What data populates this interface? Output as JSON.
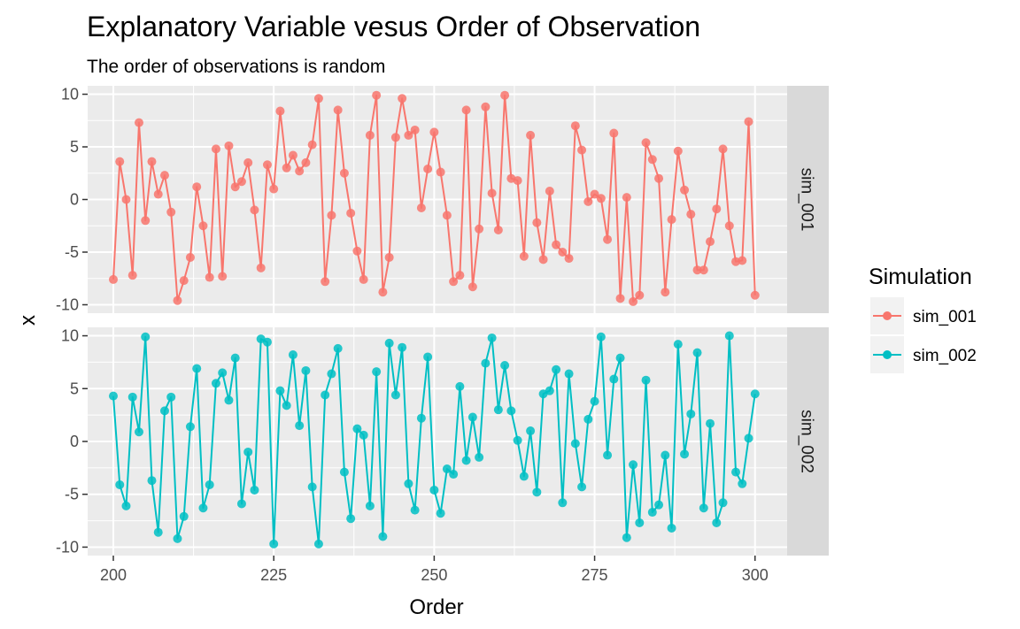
{
  "chart_data": {
    "type": "line",
    "title": "Explanatory Variable vesus Order of Observation",
    "subtitle": "The order of observations is random",
    "xlabel": "Order",
    "ylabel": "x",
    "xlim": [
      196,
      305
    ],
    "ylim": [
      -10.8,
      10.8
    ],
    "x_ticks": [
      200,
      225,
      250,
      275,
      300
    ],
    "y_ticks": [
      -10,
      -5,
      0,
      5,
      10
    ],
    "x_tick_labels": [
      "200",
      "225",
      "250",
      "275",
      "300"
    ],
    "y_tick_labels": [
      "-10",
      "-5",
      "0",
      "5",
      "10"
    ],
    "grid": true,
    "facets": [
      "sim_001",
      "sim_002"
    ],
    "legend": {
      "title": "Simulation",
      "position": "right",
      "entries": [
        {
          "label": "sim_001",
          "color": "#F8766D"
        },
        {
          "label": "sim_002",
          "color": "#00BFC4"
        }
      ]
    },
    "x_start": 200,
    "series": [
      {
        "name": "sim_001",
        "color": "#F8766D",
        "values": [
          -7.6,
          3.6,
          0.0,
          -7.2,
          7.3,
          -2.0,
          3.6,
          0.5,
          2.3,
          -1.2,
          -9.6,
          -7.7,
          -5.5,
          1.2,
          -2.5,
          -7.4,
          4.8,
          -7.3,
          5.1,
          1.2,
          1.7,
          3.5,
          -1.0,
          -6.5,
          3.3,
          1.0,
          8.4,
          3.0,
          4.2,
          2.7,
          3.5,
          5.2,
          9.6,
          -7.8,
          -1.5,
          8.5,
          2.5,
          -1.3,
          -4.9,
          -7.6,
          6.1,
          9.9,
          -8.8,
          -5.5,
          5.9,
          9.6,
          6.1,
          6.6,
          -0.8,
          2.9,
          6.4,
          2.6,
          -1.5,
          -7.8,
          -7.2,
          8.5,
          -8.3,
          -2.8,
          8.8,
          0.6,
          -2.9,
          9.9,
          2.0,
          1.8,
          -5.4,
          6.1,
          -2.2,
          -5.7,
          0.8,
          -4.3,
          -5.0,
          -5.6,
          7.0,
          4.7,
          -0.2,
          0.5,
          0.1,
          -3.8,
          6.3,
          -9.4,
          0.2,
          -9.7,
          -9.1,
          5.4,
          3.8,
          2.0,
          -8.8,
          -1.9,
          4.6,
          0.9,
          -1.4,
          -6.7,
          -6.7,
          -4.0,
          -0.9,
          4.8,
          -2.5,
          -5.9,
          -5.8,
          7.4,
          -9.1
        ]
      },
      {
        "name": "sim_002",
        "color": "#00BFC4",
        "values": [
          4.3,
          -4.1,
          -6.1,
          4.2,
          0.9,
          9.9,
          -3.7,
          -8.6,
          2.9,
          4.2,
          -9.2,
          -7.1,
          1.4,
          6.9,
          -6.3,
          -4.1,
          5.5,
          6.5,
          3.9,
          7.9,
          -5.9,
          -1.0,
          -4.6,
          9.7,
          9.4,
          -9.7,
          4.8,
          3.4,
          8.2,
          1.5,
          6.7,
          -4.3,
          -9.7,
          4.4,
          6.4,
          8.8,
          -2.9,
          -7.3,
          1.2,
          0.6,
          -6.1,
          6.6,
          -9.0,
          9.3,
          4.4,
          8.9,
          -4.0,
          -6.5,
          2.2,
          8.0,
          -4.6,
          -6.8,
          -2.6,
          -3.1,
          5.2,
          -1.8,
          2.3,
          -1.5,
          7.4,
          9.8,
          3.0,
          7.2,
          2.9,
          0.1,
          -3.3,
          1.0,
          -4.8,
          4.5,
          4.8,
          6.8,
          -5.8,
          6.4,
          -0.2,
          -4.3,
          2.1,
          3.8,
          9.9,
          -1.3,
          5.9,
          7.9,
          -9.1,
          -2.2,
          -7.7,
          5.8,
          -6.7,
          -6.0,
          -1.3,
          -8.2,
          9.2,
          -1.2,
          2.6,
          8.4,
          -6.3,
          1.7,
          -7.7,
          -5.8,
          10.0,
          -2.9,
          -4.0,
          0.3,
          4.5
        ]
      }
    ]
  }
}
